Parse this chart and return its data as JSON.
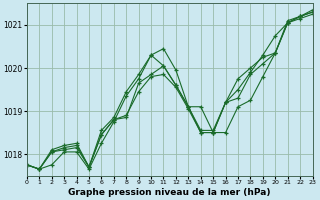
{
  "xlabel": "Graphe pression niveau de la mer (hPa)",
  "bg_color": "#cce8f0",
  "grid_color": "#99bbaa",
  "line_color": "#1a6b2a",
  "xlim": [
    0,
    23
  ],
  "ylim": [
    1017.5,
    1021.5
  ],
  "yticks": [
    1018,
    1019,
    1020,
    1021
  ],
  "xticks": [
    0,
    1,
    2,
    3,
    4,
    5,
    6,
    7,
    8,
    9,
    10,
    11,
    12,
    13,
    14,
    15,
    16,
    17,
    18,
    19,
    20,
    21,
    22,
    23
  ],
  "series": [
    [
      1017.75,
      1017.65,
      1017.75,
      1018.05,
      1018.05,
      1017.65,
      1018.25,
      1018.75,
      1019.35,
      1019.75,
      1020.3,
      1020.45,
      1019.95,
      1019.1,
      1019.1,
      1018.5,
      1018.5,
      1019.1,
      1019.25,
      1019.8,
      1020.35,
      1021.1,
      1021.2,
      1021.35
    ],
    [
      1017.75,
      1017.65,
      1018.05,
      1018.15,
      1018.2,
      1017.7,
      1018.45,
      1018.8,
      1018.85,
      1019.65,
      1019.85,
      1020.05,
      1019.6,
      1019.1,
      1018.5,
      1018.5,
      1019.2,
      1019.5,
      1019.9,
      1020.3,
      1020.75,
      1021.05,
      1021.2,
      1021.3
    ],
    [
      1017.75,
      1017.65,
      1018.05,
      1018.1,
      1018.15,
      1017.7,
      1018.45,
      1018.8,
      1018.9,
      1019.45,
      1019.8,
      1019.85,
      1019.55,
      1019.05,
      1018.5,
      1018.5,
      1019.2,
      1019.3,
      1019.85,
      1020.1,
      1020.35,
      1021.05,
      1021.15,
      1021.25
    ],
    [
      1017.75,
      1017.65,
      1018.1,
      1018.2,
      1018.25,
      1017.7,
      1018.55,
      1018.85,
      1019.45,
      1019.85,
      1020.3,
      1020.05,
      1019.6,
      1019.1,
      1018.55,
      1018.55,
      1019.2,
      1019.75,
      1020.0,
      1020.25,
      1020.35,
      1021.05,
      1021.2,
      1021.3
    ]
  ]
}
